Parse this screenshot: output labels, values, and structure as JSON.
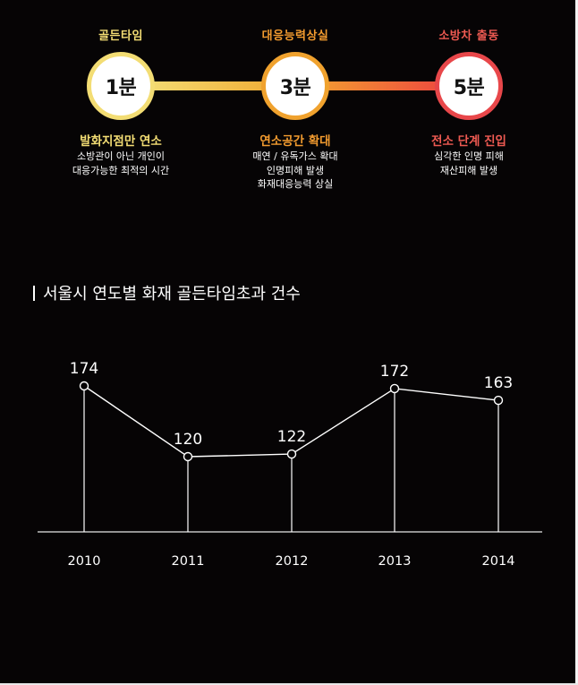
{
  "timeline": {
    "stages": [
      {
        "title": "골든타임",
        "time": "1분",
        "headline": "발화지점만 연소",
        "lines": [
          "소방관이 아닌 개인이",
          "대응가능한 최적의 시간"
        ],
        "color": "#f3dd74",
        "ring_color": "#f3dd74"
      },
      {
        "title": "대응능력상실",
        "time": "3분",
        "headline": "연소공간 확대",
        "lines": [
          "매연 / 유독가스 확대",
          "인명피해 발생",
          "화재대응능력 상실"
        ],
        "color": "#f29b2f",
        "ring_color": "#f0a22e"
      },
      {
        "title": "소방차 출동",
        "time": "5분",
        "headline": "전소 단계 진입",
        "lines": [
          "심각한 인명 피해",
          "재산피해 발생"
        ],
        "color": "#ee5a52",
        "ring_color": "#e8474a"
      }
    ]
  },
  "chart_title": "서울시 연도별 화재 골든타임초과 건수",
  "chart_data": {
    "type": "line",
    "title": "서울시 연도별 화재 골든타임초과 건수",
    "categories": [
      "2010",
      "2011",
      "2012",
      "2013",
      "2014"
    ],
    "series": [
      {
        "values": [
          174,
          120,
          122,
          172,
          163
        ]
      }
    ],
    "ylim": [
      0,
      190
    ],
    "grid": false,
    "legend": "none",
    "line_color": "#ffffff"
  }
}
